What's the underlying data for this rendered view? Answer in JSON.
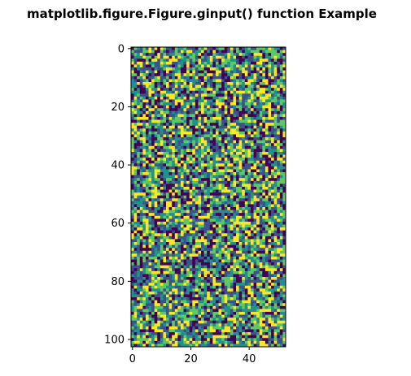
{
  "figure": {
    "title": "matplotlib.figure.Figure.ginput() function Example"
  },
  "chart_data": {
    "type": "heatmap",
    "title": "matplotlib.figure.Figure.ginput() function Example",
    "description_values": "random integer/noise image, values uniformly distributed",
    "colormap": "viridis",
    "colors": [
      "#440154",
      "#3b528b",
      "#21918c",
      "#5ec962",
      "#fde725"
    ],
    "n_cols": 53,
    "n_rows": 103,
    "xlim": [
      -0.5,
      52.5
    ],
    "ylim": [
      102.5,
      -0.5
    ],
    "xticks": [
      0,
      20,
      40
    ],
    "xtick_labels": [
      "0",
      "20",
      "40"
    ],
    "yticks": [
      0,
      20,
      40,
      60,
      80,
      100
    ],
    "ytick_labels": [
      "0",
      "20",
      "40",
      "60",
      "80",
      "100"
    ],
    "xlabel": "",
    "ylabel": "",
    "grid": false,
    "legend": false
  }
}
